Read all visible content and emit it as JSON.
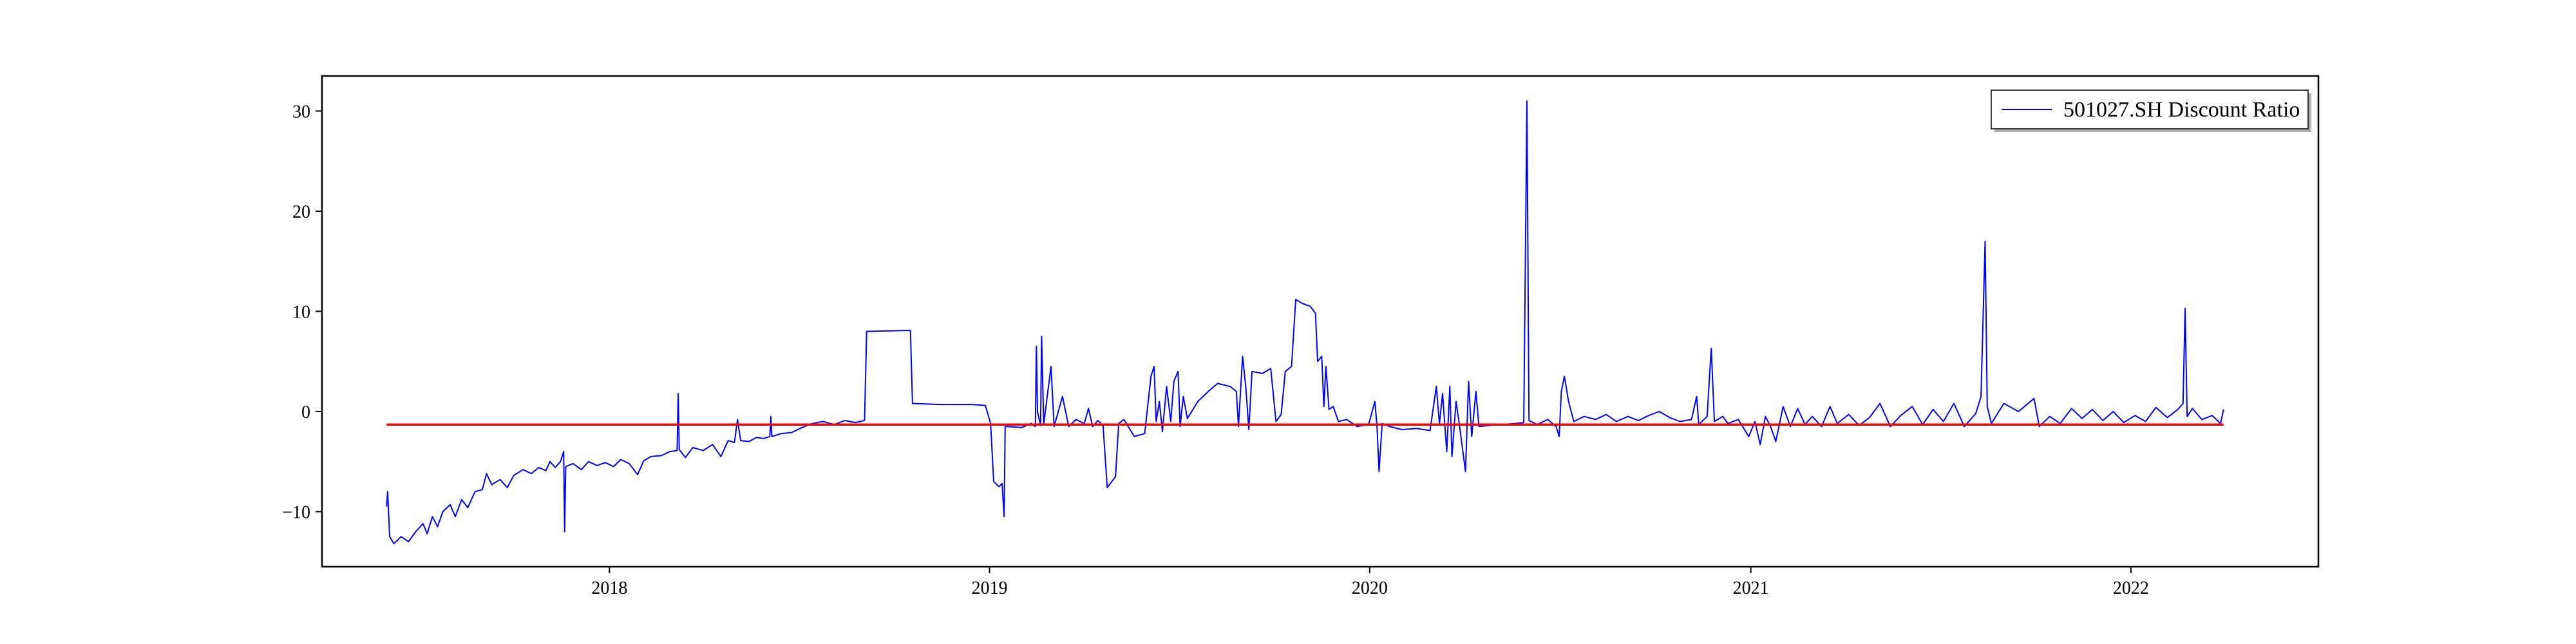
{
  "chart_data": {
    "type": "line",
    "title": "",
    "xlabel": "",
    "ylabel": "",
    "xlim": [
      "2017-03-31",
      "2022-06-30"
    ],
    "ylim": [
      -15.5,
      33.5
    ],
    "x_ticks": [
      {
        "value": "2018-01-01",
        "label": "2018"
      },
      {
        "value": "2019-01-01",
        "label": "2019"
      },
      {
        "value": "2020-01-01",
        "label": "2020"
      },
      {
        "value": "2021-01-01",
        "label": "2021"
      },
      {
        "value": "2022-01-01",
        "label": "2022"
      }
    ],
    "y_ticks": [
      {
        "value": -10,
        "label": "−10"
      },
      {
        "value": 0,
        "label": "0"
      },
      {
        "value": 10,
        "label": "10"
      },
      {
        "value": 20,
        "label": "20"
      },
      {
        "value": 30,
        "label": "30"
      }
    ],
    "grid": false,
    "legend_position": "top-right",
    "series": [
      {
        "name": "501027.SH Discount Ratio",
        "color": "#0000ff",
        "points": [
          [
            "2017-06-01",
            -9.5
          ],
          [
            "2017-06-02",
            -8.0
          ],
          [
            "2017-06-04",
            -12.5
          ],
          [
            "2017-06-08",
            -13.2
          ],
          [
            "2017-06-15",
            -12.5
          ],
          [
            "2017-06-22",
            -13.0
          ],
          [
            "2017-06-29",
            -12.0
          ],
          [
            "2017-07-06",
            -11.2
          ],
          [
            "2017-07-10",
            -12.2
          ],
          [
            "2017-07-15",
            -10.5
          ],
          [
            "2017-07-20",
            -11.5
          ],
          [
            "2017-07-25",
            -10.0
          ],
          [
            "2017-08-01",
            -9.3
          ],
          [
            "2017-08-06",
            -10.5
          ],
          [
            "2017-08-12",
            -8.8
          ],
          [
            "2017-08-18",
            -9.6
          ],
          [
            "2017-08-25",
            -8.0
          ],
          [
            "2017-09-01",
            -7.8
          ],
          [
            "2017-09-05",
            -6.2
          ],
          [
            "2017-09-10",
            -7.3
          ],
          [
            "2017-09-18",
            -6.8
          ],
          [
            "2017-09-25",
            -7.6
          ],
          [
            "2017-10-01",
            -6.4
          ],
          [
            "2017-10-10",
            -5.8
          ],
          [
            "2017-10-18",
            -6.2
          ],
          [
            "2017-10-25",
            -5.6
          ],
          [
            "2017-11-01",
            -5.9
          ],
          [
            "2017-11-05",
            -5.0
          ],
          [
            "2017-11-10",
            -5.6
          ],
          [
            "2017-11-15",
            -5.0
          ],
          [
            "2017-11-18",
            -4.0
          ],
          [
            "2017-11-19",
            -12.0
          ],
          [
            "2017-11-20",
            -5.5
          ],
          [
            "2017-11-27",
            -5.2
          ],
          [
            "2017-12-05",
            -5.8
          ],
          [
            "2017-12-12",
            -5.0
          ],
          [
            "2017-12-20",
            -5.4
          ],
          [
            "2017-12-28",
            -5.1
          ],
          [
            "2018-01-05",
            -5.5
          ],
          [
            "2018-01-12",
            -4.8
          ],
          [
            "2018-01-20",
            -5.2
          ],
          [
            "2018-01-28",
            -6.3
          ],
          [
            "2018-02-03",
            -4.9
          ],
          [
            "2018-02-10",
            -4.5
          ],
          [
            "2018-02-20",
            -4.4
          ],
          [
            "2018-02-28",
            -4.0
          ],
          [
            "2018-03-07",
            -3.9
          ],
          [
            "2018-03-08",
            1.8
          ],
          [
            "2018-03-09",
            -3.8
          ],
          [
            "2018-03-15",
            -4.6
          ],
          [
            "2018-03-22",
            -3.6
          ],
          [
            "2018-04-01",
            -3.9
          ],
          [
            "2018-04-10",
            -3.3
          ],
          [
            "2018-04-18",
            -4.5
          ],
          [
            "2018-04-25",
            -2.9
          ],
          [
            "2018-05-01",
            -3.1
          ],
          [
            "2018-05-04",
            -0.8
          ],
          [
            "2018-05-07",
            -2.9
          ],
          [
            "2018-05-15",
            -3.0
          ],
          [
            "2018-05-22",
            -2.6
          ],
          [
            "2018-05-29",
            -2.7
          ],
          [
            "2018-06-04",
            -2.5
          ],
          [
            "2018-06-05",
            -0.5
          ],
          [
            "2018-06-06",
            -2.5
          ],
          [
            "2018-06-15",
            -2.2
          ],
          [
            "2018-06-25",
            -2.1
          ],
          [
            "2018-07-05",
            -1.6
          ],
          [
            "2018-07-15",
            -1.2
          ],
          [
            "2018-07-25",
            -1.0
          ],
          [
            "2018-08-05",
            -1.3
          ],
          [
            "2018-08-15",
            -0.9
          ],
          [
            "2018-08-25",
            -1.1
          ],
          [
            "2018-09-03",
            -0.9
          ],
          [
            "2018-09-05",
            8.0
          ],
          [
            "2018-10-17",
            8.1
          ],
          [
            "2018-10-19",
            0.8
          ],
          [
            "2018-11-15",
            0.7
          ],
          [
            "2018-12-15",
            0.7
          ],
          [
            "2018-12-28",
            0.6
          ],
          [
            "2019-01-02",
            -1.2
          ],
          [
            "2019-01-05",
            -7.0
          ],
          [
            "2019-01-10",
            -7.5
          ],
          [
            "2019-01-13",
            -7.2
          ],
          [
            "2019-01-15",
            -10.5
          ],
          [
            "2019-01-16",
            -1.5
          ],
          [
            "2019-02-01",
            -1.6
          ],
          [
            "2019-02-10",
            -1.2
          ],
          [
            "2019-02-14",
            -1.5
          ],
          [
            "2019-02-15",
            6.5
          ],
          [
            "2019-02-16",
            0.0
          ],
          [
            "2019-02-19",
            -1.4
          ],
          [
            "2019-02-20",
            7.5
          ],
          [
            "2019-02-22",
            -1.3
          ],
          [
            "2019-02-25",
            1.2
          ],
          [
            "2019-03-01",
            4.5
          ],
          [
            "2019-03-04",
            -1.5
          ],
          [
            "2019-03-12",
            1.5
          ],
          [
            "2019-03-18",
            -1.5
          ],
          [
            "2019-03-25",
            -0.8
          ],
          [
            "2019-04-02",
            -1.2
          ],
          [
            "2019-04-06",
            0.3
          ],
          [
            "2019-04-10",
            -1.5
          ],
          [
            "2019-04-15",
            -0.9
          ],
          [
            "2019-04-20",
            -1.4
          ],
          [
            "2019-04-24",
            -7.6
          ],
          [
            "2019-05-02",
            -6.5
          ],
          [
            "2019-05-05",
            -1.2
          ],
          [
            "2019-05-10",
            -0.8
          ],
          [
            "2019-05-20",
            -2.5
          ],
          [
            "2019-05-30",
            -2.2
          ],
          [
            "2019-06-05",
            3.5
          ],
          [
            "2019-06-08",
            4.5
          ],
          [
            "2019-06-10",
            -1.0
          ],
          [
            "2019-06-13",
            1.0
          ],
          [
            "2019-06-16",
            -2.0
          ],
          [
            "2019-06-20",
            2.5
          ],
          [
            "2019-06-24",
            -1.0
          ],
          [
            "2019-06-27",
            3.0
          ],
          [
            "2019-07-01",
            4.0
          ],
          [
            "2019-07-03",
            -1.5
          ],
          [
            "2019-07-06",
            1.5
          ],
          [
            "2019-07-10",
            -0.7
          ],
          [
            "2019-07-20",
            1.0
          ],
          [
            "2019-07-30",
            2.0
          ],
          [
            "2019-08-08",
            2.8
          ],
          [
            "2019-08-20",
            2.5
          ],
          [
            "2019-08-26",
            2.0
          ],
          [
            "2019-08-28",
            -1.5
          ],
          [
            "2019-09-01",
            5.5
          ],
          [
            "2019-09-04",
            2.5
          ],
          [
            "2019-09-07",
            -1.8
          ],
          [
            "2019-09-10",
            4.0
          ],
          [
            "2019-09-20",
            3.8
          ],
          [
            "2019-09-28",
            4.3
          ],
          [
            "2019-10-03",
            -1.0
          ],
          [
            "2019-10-08",
            -0.3
          ],
          [
            "2019-10-12",
            4.0
          ],
          [
            "2019-10-18",
            4.5
          ],
          [
            "2019-10-22",
            11.2
          ],
          [
            "2019-10-28",
            10.8
          ],
          [
            "2019-11-05",
            10.5
          ],
          [
            "2019-11-10",
            9.8
          ],
          [
            "2019-11-12",
            5.0
          ],
          [
            "2019-11-16",
            5.5
          ],
          [
            "2019-11-18",
            0.5
          ],
          [
            "2019-11-20",
            4.5
          ],
          [
            "2019-11-23",
            0.2
          ],
          [
            "2019-11-27",
            0.5
          ],
          [
            "2019-12-02",
            -1.0
          ],
          [
            "2019-12-10",
            -0.8
          ],
          [
            "2019-12-20",
            -1.5
          ],
          [
            "2019-12-31",
            -1.3
          ],
          [
            "2020-01-06",
            1.0
          ],
          [
            "2020-01-08",
            -1.4
          ],
          [
            "2020-01-10",
            -6.0
          ],
          [
            "2020-01-13",
            -1.2
          ],
          [
            "2020-01-20",
            -1.5
          ],
          [
            "2020-02-01",
            -1.8
          ],
          [
            "2020-02-15",
            -1.7
          ],
          [
            "2020-02-28",
            -1.9
          ],
          [
            "2020-03-05",
            2.5
          ],
          [
            "2020-03-08",
            -1.2
          ],
          [
            "2020-03-11",
            1.8
          ],
          [
            "2020-03-15",
            -4.0
          ],
          [
            "2020-03-18",
            2.5
          ],
          [
            "2020-03-20",
            -4.5
          ],
          [
            "2020-03-24",
            1.0
          ],
          [
            "2020-03-27",
            -1.2
          ],
          [
            "2020-04-02",
            -6.0
          ],
          [
            "2020-04-05",
            3.0
          ],
          [
            "2020-04-08",
            -2.5
          ],
          [
            "2020-04-12",
            2.0
          ],
          [
            "2020-04-15",
            -1.5
          ],
          [
            "2020-04-25",
            -1.4
          ],
          [
            "2020-05-05",
            -1.3
          ],
          [
            "2020-05-20",
            -1.2
          ],
          [
            "2020-05-28",
            -1.1
          ],
          [
            "2020-05-31",
            31.0
          ],
          [
            "2020-06-02",
            -0.9
          ],
          [
            "2020-06-10",
            -1.3
          ],
          [
            "2020-06-20",
            -0.8
          ],
          [
            "2020-06-28",
            -1.5
          ],
          [
            "2020-07-01",
            -2.5
          ],
          [
            "2020-07-03",
            2.0
          ],
          [
            "2020-07-06",
            3.5
          ],
          [
            "2020-07-10",
            1.0
          ],
          [
            "2020-07-15",
            -1.0
          ],
          [
            "2020-07-25",
            -0.5
          ],
          [
            "2020-08-05",
            -0.8
          ],
          [
            "2020-08-15",
            -0.3
          ],
          [
            "2020-08-25",
            -1.0
          ],
          [
            "2020-09-05",
            -0.5
          ],
          [
            "2020-09-15",
            -0.9
          ],
          [
            "2020-09-25",
            -0.4
          ],
          [
            "2020-10-05",
            0.0
          ],
          [
            "2020-10-15",
            -0.6
          ],
          [
            "2020-10-25",
            -1.0
          ],
          [
            "2020-11-05",
            -0.8
          ],
          [
            "2020-11-10",
            1.5
          ],
          [
            "2020-11-12",
            -1.3
          ],
          [
            "2020-11-20",
            -0.5
          ],
          [
            "2020-11-24",
            6.3
          ],
          [
            "2020-11-27",
            -1.0
          ],
          [
            "2020-12-05",
            -0.5
          ],
          [
            "2020-12-10",
            -1.2
          ],
          [
            "2020-12-20",
            -0.8
          ],
          [
            "2020-12-30",
            -2.5
          ],
          [
            "2021-01-05",
            -1.0
          ],
          [
            "2021-01-10",
            -3.3
          ],
          [
            "2021-01-15",
            -0.5
          ],
          [
            "2021-01-20",
            -1.5
          ],
          [
            "2021-01-25",
            -3.0
          ],
          [
            "2021-02-01",
            0.5
          ],
          [
            "2021-02-08",
            -1.5
          ],
          [
            "2021-02-15",
            0.3
          ],
          [
            "2021-02-22",
            -1.3
          ],
          [
            "2021-03-01",
            -0.5
          ],
          [
            "2021-03-10",
            -1.5
          ],
          [
            "2021-03-18",
            0.5
          ],
          [
            "2021-03-25",
            -1.2
          ],
          [
            "2021-04-05",
            -0.3
          ],
          [
            "2021-04-15",
            -1.4
          ],
          [
            "2021-04-25",
            -0.6
          ],
          [
            "2021-05-05",
            0.8
          ],
          [
            "2021-05-15",
            -1.5
          ],
          [
            "2021-05-25",
            -0.4
          ],
          [
            "2021-06-05",
            0.5
          ],
          [
            "2021-06-15",
            -1.3
          ],
          [
            "2021-06-25",
            0.2
          ],
          [
            "2021-07-05",
            -1.0
          ],
          [
            "2021-07-15",
            0.8
          ],
          [
            "2021-07-25",
            -1.5
          ],
          [
            "2021-08-05",
            -0.2
          ],
          [
            "2021-08-10",
            1.5
          ],
          [
            "2021-08-14",
            17.0
          ],
          [
            "2021-08-16",
            0.5
          ],
          [
            "2021-08-20",
            -1.2
          ],
          [
            "2021-09-01",
            0.8
          ],
          [
            "2021-09-15",
            0.0
          ],
          [
            "2021-09-30",
            1.3
          ],
          [
            "2021-10-05",
            -1.5
          ],
          [
            "2021-10-15",
            -0.5
          ],
          [
            "2021-10-25",
            -1.2
          ],
          [
            "2021-11-05",
            0.3
          ],
          [
            "2021-11-15",
            -0.7
          ],
          [
            "2021-11-25",
            0.2
          ],
          [
            "2021-12-05",
            -0.9
          ],
          [
            "2021-12-15",
            0.0
          ],
          [
            "2021-12-25",
            -1.1
          ],
          [
            "2022-01-05",
            -0.4
          ],
          [
            "2022-01-15",
            -1.0
          ],
          [
            "2022-01-25",
            0.4
          ],
          [
            "2022-02-05",
            -0.6
          ],
          [
            "2022-02-15",
            0.2
          ],
          [
            "2022-02-20",
            0.8
          ],
          [
            "2022-02-22",
            10.3
          ],
          [
            "2022-02-24",
            -0.5
          ],
          [
            "2022-03-01",
            0.3
          ],
          [
            "2022-03-10",
            -0.8
          ],
          [
            "2022-03-20",
            -0.4
          ],
          [
            "2022-03-28",
            -1.2
          ],
          [
            "2022-03-31",
            0.2
          ]
        ]
      },
      {
        "name": "",
        "color": "#ff0000",
        "points": [
          [
            "2017-06-01",
            -1.3
          ],
          [
            "2022-03-31",
            -1.3
          ]
        ]
      }
    ]
  }
}
